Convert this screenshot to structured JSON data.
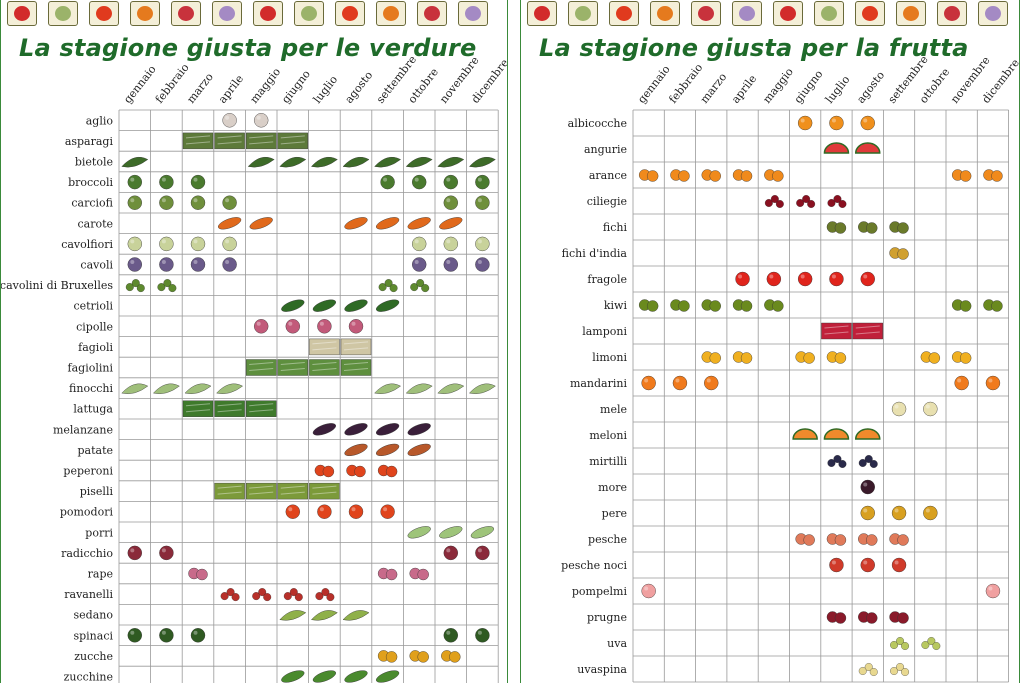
{
  "strip_colors": [
    "#d22b2b",
    "#9bb36a",
    "#e03a1e",
    "#e57a1e",
    "#c8323c",
    "#a48ac4"
  ],
  "vegetables": {
    "title": "La stagione giusta per le verdure",
    "months": [
      "gennaio",
      "febbraio",
      "marzo",
      "aprile",
      "maggio",
      "giugno",
      "luglio",
      "agosto",
      "settembre",
      "ottobre",
      "novembre",
      "dicembre"
    ],
    "rows": [
      {
        "label": "aglio",
        "months": [
          4,
          5
        ],
        "color": "#d9cfc8",
        "shape": "round"
      },
      {
        "label": "asparagi",
        "months": [
          3,
          4,
          5,
          6
        ],
        "color": "#5d7a3a",
        "shape": "block"
      },
      {
        "label": "bietole",
        "months": [
          1,
          5,
          6,
          7,
          8,
          9,
          10,
          11,
          12
        ],
        "color": "#3d6b28",
        "shape": "leaf"
      },
      {
        "label": "broccoli",
        "months": [
          1,
          2,
          3,
          9,
          10,
          11,
          12
        ],
        "color": "#4a7a2e",
        "shape": "round"
      },
      {
        "label": "carciofi",
        "months": [
          1,
          2,
          3,
          4,
          11,
          12
        ],
        "color": "#6f8f3c",
        "shape": "round"
      },
      {
        "label": "carote",
        "months": [
          4,
          5,
          8,
          9,
          10,
          11
        ],
        "color": "#e0691c",
        "shape": "long"
      },
      {
        "label": "cavolfiori",
        "months": [
          1,
          2,
          3,
          4,
          10,
          11,
          12
        ],
        "color": "#c8d29a",
        "shape": "round"
      },
      {
        "label": "cavoli",
        "months": [
          1,
          2,
          3,
          4,
          10,
          11,
          12
        ],
        "color": "#6a5a8a",
        "shape": "round"
      },
      {
        "label": "cavolini di Bruxelles",
        "months": [
          1,
          2,
          9,
          10
        ],
        "color": "#5e8a2e",
        "shape": "small"
      },
      {
        "label": "cetrioli",
        "months": [
          6,
          7,
          8,
          9
        ],
        "color": "#2f6a25",
        "shape": "long"
      },
      {
        "label": "cipolle",
        "months": [
          5,
          6,
          7,
          8
        ],
        "color": "#c25a7a",
        "shape": "round"
      },
      {
        "label": "fagioli",
        "months": [
          7,
          8
        ],
        "color": "#cfc6a4",
        "shape": "block"
      },
      {
        "label": "fagiolini",
        "months": [
          5,
          6,
          7,
          8
        ],
        "color": "#5e8f3e",
        "shape": "block"
      },
      {
        "label": "finocchi",
        "months": [
          1,
          2,
          3,
          4,
          9,
          10,
          11,
          12
        ],
        "color": "#9fbf7a",
        "shape": "leaf"
      },
      {
        "label": "lattuga",
        "months": [
          3,
          4,
          5
        ],
        "color": "#3f7a2c",
        "shape": "block"
      },
      {
        "label": "melanzane",
        "months": [
          7,
          8,
          9,
          10
        ],
        "color": "#3a1f3a",
        "shape": "long"
      },
      {
        "label": "patate",
        "months": [
          8,
          9,
          10
        ],
        "color": "#b8582a",
        "shape": "long"
      },
      {
        "label": "peperoni",
        "months": [
          7,
          8,
          9
        ],
        "color": "#e0441c",
        "shape": "pair"
      },
      {
        "label": "piselli",
        "months": [
          4,
          5,
          6,
          7
        ],
        "color": "#7c9a3a",
        "shape": "block"
      },
      {
        "label": "pomodori",
        "months": [
          6,
          7,
          8,
          9
        ],
        "color": "#e0441c",
        "shape": "round"
      },
      {
        "label": "porri",
        "months": [
          10,
          11,
          12
        ],
        "color": "#9ec47a",
        "shape": "long"
      },
      {
        "label": "radicchio",
        "months": [
          1,
          2,
          11,
          12
        ],
        "color": "#8a2a3a",
        "shape": "round"
      },
      {
        "label": "rape",
        "months": [
          3,
          9,
          10
        ],
        "color": "#c86a8a",
        "shape": "pair"
      },
      {
        "label": "ravanelli",
        "months": [
          4,
          5,
          6,
          7
        ],
        "color": "#b8302a",
        "shape": "small"
      },
      {
        "label": "sedano",
        "months": [
          6,
          7,
          8
        ],
        "color": "#8fb04a",
        "shape": "leaf"
      },
      {
        "label": "spinaci",
        "months": [
          1,
          2,
          3,
          11,
          12
        ],
        "color": "#2f5a22",
        "shape": "round"
      },
      {
        "label": "zucche",
        "months": [
          9,
          10,
          11
        ],
        "color": "#e0a01c",
        "shape": "pair"
      },
      {
        "label": "zucchine",
        "months": [
          6,
          7,
          8,
          9
        ],
        "color": "#4a8a2e",
        "shape": "long"
      }
    ]
  },
  "fruits": {
    "title": "La stagione giusta per la frutta",
    "months": [
      "gennaio",
      "febbraio",
      "marzo",
      "aprile",
      "maggio",
      "giugno",
      "luglio",
      "agosto",
      "settembre",
      "ottobre",
      "novembre",
      "dicembre"
    ],
    "rows": [
      {
        "label": "albicocche",
        "months": [
          6,
          7,
          8
        ],
        "color": "#f0901c",
        "shape": "round"
      },
      {
        "label": "angurie",
        "months": [
          7,
          8
        ],
        "color": "#e03a3a",
        "shape": "half"
      },
      {
        "label": "arance",
        "months": [
          1,
          2,
          3,
          4,
          5,
          11,
          12
        ],
        "color": "#f08a1c",
        "shape": "pair"
      },
      {
        "label": "ciliegie",
        "months": [
          5,
          6,
          7
        ],
        "color": "#8a1020",
        "shape": "small"
      },
      {
        "label": "fichi",
        "months": [
          7,
          8,
          9
        ],
        "color": "#6a7a2a",
        "shape": "pair"
      },
      {
        "label": "fichi d'india",
        "months": [
          9
        ],
        "color": "#d0a030",
        "shape": "pair"
      },
      {
        "label": "fragole",
        "months": [
          4,
          5,
          6,
          7,
          8
        ],
        "color": "#e0241c",
        "shape": "round"
      },
      {
        "label": "kiwi",
        "months": [
          1,
          2,
          3,
          4,
          5,
          11,
          12
        ],
        "color": "#6a8a1e",
        "shape": "pair"
      },
      {
        "label": "lamponi",
        "months": [
          7,
          8
        ],
        "color": "#c0203a",
        "shape": "block"
      },
      {
        "label": "limoni",
        "months": [
          3,
          4,
          6,
          7,
          10,
          11
        ],
        "color": "#f0b020",
        "shape": "pair"
      },
      {
        "label": "mandarini",
        "months": [
          1,
          2,
          3,
          11,
          12
        ],
        "color": "#f07a1c",
        "shape": "round"
      },
      {
        "label": "mele",
        "months": [
          9,
          10
        ],
        "color": "#e8e0b0",
        "shape": "round"
      },
      {
        "label": "meloni",
        "months": [
          6,
          7,
          8
        ],
        "color": "#f08a2c",
        "shape": "half"
      },
      {
        "label": "mirtilli",
        "months": [
          7,
          8
        ],
        "color": "#2a2a4a",
        "shape": "small"
      },
      {
        "label": "more",
        "months": [
          8
        ],
        "color": "#3a1a2a",
        "shape": "round"
      },
      {
        "label": "pere",
        "months": [
          8,
          9,
          10
        ],
        "color": "#d8a020",
        "shape": "round"
      },
      {
        "label": "pesche",
        "months": [
          6,
          7,
          8,
          9
        ],
        "color": "#e07a5a",
        "shape": "pair"
      },
      {
        "label": "pesche noci",
        "months": [
          7,
          8,
          9
        ],
        "color": "#d03a2a",
        "shape": "round"
      },
      {
        "label": "pompelmi",
        "months": [
          1,
          12
        ],
        "color": "#f0a0a0",
        "shape": "round"
      },
      {
        "label": "prugne",
        "months": [
          7,
          8,
          9
        ],
        "color": "#8a1a2a",
        "shape": "pair"
      },
      {
        "label": "uva",
        "months": [
          9,
          10
        ],
        "color": "#b8c860",
        "shape": "small"
      },
      {
        "label": "uvaspina",
        "months": [
          8,
          9
        ],
        "color": "#e8d890",
        "shape": "small"
      }
    ]
  }
}
